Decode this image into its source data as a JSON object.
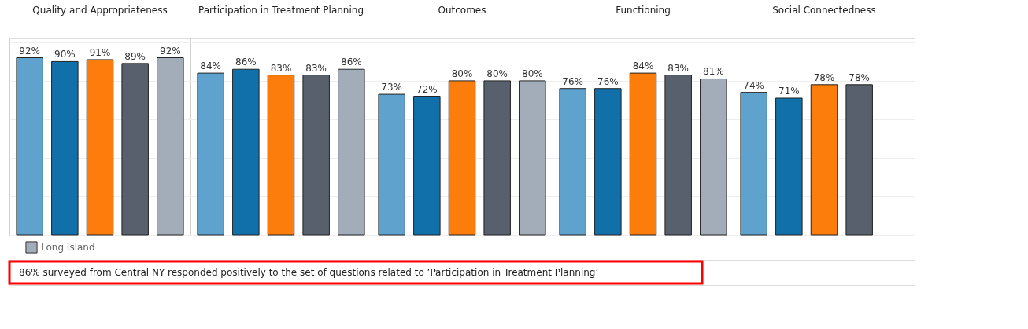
{
  "chart_data": {
    "type": "bar",
    "categories": [
      "Quality and Appropriateness",
      "Participation in Treatment Planning",
      "Outcomes",
      "Functioning",
      "Social Connectedness"
    ],
    "series": [
      {
        "color": "#5fa2ce",
        "values": [
          92,
          84,
          73,
          76,
          74
        ],
        "value_labels": [
          "92%",
          "84%",
          "73%",
          "76%",
          "74%"
        ]
      },
      {
        "color": "#1170aa",
        "values": [
          90,
          86,
          72,
          76,
          71
        ],
        "value_labels": [
          "90%",
          "86%",
          "72%",
          "76%",
          "71%"
        ]
      },
      {
        "color": "#fc7d0b",
        "values": [
          91,
          83,
          80,
          84,
          78
        ],
        "value_labels": [
          "91%",
          "83%",
          "80%",
          "84%",
          "78%"
        ]
      },
      {
        "color": "#57606c",
        "values": [
          89,
          83,
          80,
          83,
          78
        ],
        "value_labels": [
          "89%",
          "83%",
          "80%",
          "83%",
          "78%"
        ]
      },
      {
        "name": "Long Island",
        "color": "#a3acb9",
        "values": [
          92,
          86,
          80,
          81,
          null
        ],
        "value_labels": [
          "92%",
          "86%",
          "80%",
          "81%",
          null
        ]
      }
    ],
    "ylim": [
      0,
      102
    ],
    "yticks": [
      {
        "value": 0,
        "label": null
      },
      {
        "value": 20,
        "label": null
      },
      {
        "value": 40,
        "label": null
      },
      {
        "value": 60,
        "label": null
      },
      {
        "value": 80,
        "label": null
      },
      {
        "value": 100,
        "label": null
      }
    ],
    "grid": "y",
    "tick_labels": "x",
    "legend": "bottom left",
    "annotations": [
      "86%  surveyed from Central NY responded positively to the set of questions related to ’Participation in Treatment Planning’"
    ]
  }
}
